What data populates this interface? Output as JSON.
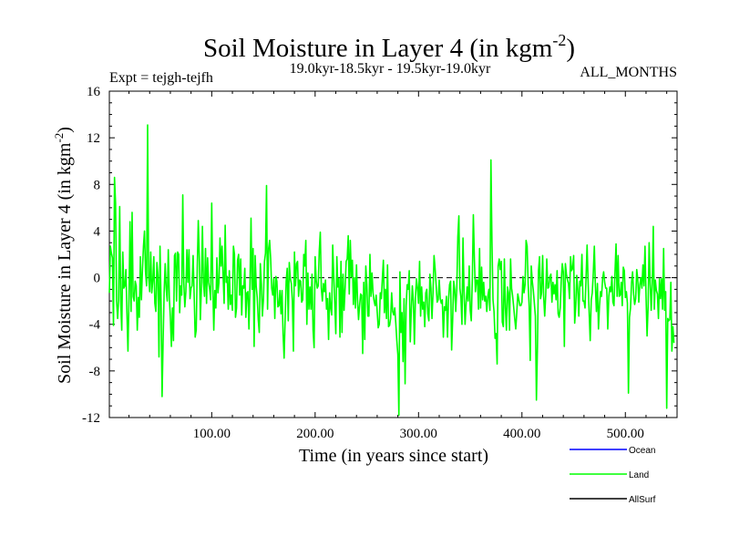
{
  "chart_data": {
    "type": "line",
    "title_main": "Soil Moisture in Layer 4 (in kgm",
    "title_sup": "-2",
    "title_close": ")",
    "expt_label": "Expt = tejgh-tejfh",
    "period_label": "19.0kyr-18.5kyr - 19.5kyr-19.0kyr",
    "months_label": "ALL_MONTHS",
    "xlabel": "Time (in years since start)",
    "ylabel_main": "Soil Moisture in Layer 4 (in kgm",
    "ylabel_sup": "-2",
    "ylabel_close": ")",
    "xlim": [
      1,
      550
    ],
    "ylim": [
      -12,
      16
    ],
    "x_ticks": [
      100,
      200,
      300,
      400,
      500
    ],
    "x_tick_labels": [
      "100.00",
      "200.00",
      "300.00",
      "400.00",
      "500.00"
    ],
    "y_ticks": [
      -12,
      -8,
      -4,
      0,
      4,
      8,
      12,
      16
    ],
    "y_tick_labels": [
      "-12",
      "-8",
      "-4",
      "0",
      "4",
      "8",
      "12",
      "16"
    ],
    "zero_line": true,
    "legend": [
      {
        "name": "Ocean",
        "color": "#0000ff"
      },
      {
        "name": "Land",
        "color": "#00ff00"
      },
      {
        "name": "AllSurf",
        "color": "#000000"
      }
    ],
    "series": [
      {
        "name": "Land",
        "color": "#00ff00",
        "x_start": 1,
        "x_step": 1,
        "values": [
          -1.3,
          2.7,
          2.1,
          1.7,
          -4.1,
          8.6,
          6.4,
          -2.0,
          -3.5,
          -1.9,
          6.1,
          -2.0,
          -4.5,
          2.2,
          -0.9,
          -0.7,
          0.7,
          -3.0,
          -6.3,
          -1.7,
          4.8,
          -2.9,
          5.6,
          -1.6,
          -2.0,
          -0.3,
          -0.7,
          -4.5,
          -1.7,
          -3.4,
          1.8,
          -1.9,
          0.7,
          2.7,
          4.0,
          0.5,
          -0.7,
          13.1,
          0.1,
          -1.2,
          2.2,
          -1.3,
          -0.3,
          1.8,
          -2.2,
          -2.9,
          1.3,
          0.2,
          -6.8,
          2.7,
          -2.1,
          -10.2,
          -5.4,
          -1.2,
          1.2,
          -1.0,
          -2.0,
          2.4,
          -1.7,
          -3.4,
          -5.9,
          -2.6,
          -5.4,
          1.9,
          2.1,
          -2.0,
          2.2,
          2.0,
          -3.0,
          -0.7,
          -1.5,
          7.1,
          -0.4,
          -2.5,
          -1.2,
          2.4,
          -0.4,
          2.4,
          -1.8,
          -0.9,
          -0.7,
          1.9,
          -1.4,
          -5.1,
          -4.5,
          0.8,
          4.9,
          1.6,
          -3.6,
          -0.9,
          4.4,
          -0.4,
          -1.6,
          2.5,
          -2.2,
          1.7,
          -0.4,
          -1.0,
          -1.9,
          6.4,
          -0.5,
          -4.5,
          -1.1,
          -2.6,
          1.7,
          -1.3,
          -0.4,
          3.4,
          1.0,
          2.7,
          0.2,
          -2.2,
          4.5,
          -0.4,
          0.1,
          -2.7,
          0.6,
          -2.3,
          -1.5,
          -2.8,
          2.7,
          2.0,
          -3.4,
          -2.6,
          1.5,
          2.0,
          -1.5,
          1.6,
          -3.2,
          -0.7,
          -0.9,
          0.8,
          -3.4,
          -1.3,
          -1.2,
          -4.4,
          -0.5,
          5.1,
          -1.0,
          2.5,
          -5.9,
          1.9,
          -0.7,
          -1.7,
          -3.6,
          -4.7,
          1.2,
          -0.5,
          -3.3,
          -1.9,
          1.4,
          2.1,
          7.9,
          -2.7,
          2.5,
          3.2,
          1.6,
          -0.9,
          -1.5,
          -0.1,
          -3.5,
          0.1,
          -0.3,
          -2.5,
          -2.4,
          -1.1,
          -3.1,
          -1.1,
          -4.8,
          -6.9,
          -3.5,
          -0.3,
          0.8,
          -3.7,
          1.3,
          -0.1,
          -0.5,
          -2.0,
          -6.3,
          2.2,
          -0.7,
          1.2,
          1.4,
          -1.6,
          -0.2,
          -0.3,
          -2.1,
          -1.9,
          2.0,
          1.0,
          3.2,
          -4.0,
          0.4,
          -2.7,
          -0.8,
          -2.7,
          0.3,
          -4.5,
          -6.0,
          1.8,
          -0.2,
          -0.9,
          -0.7,
          2.3,
          3.9,
          -0.9,
          -2.0,
          -0.5,
          -1.2,
          -0.2,
          -2.7,
          -1.8,
          -5.3,
          -1.3,
          -2.6,
          -3.2,
          2.8,
          0.2,
          -2.2,
          -4.8,
          1.8,
          -0.8,
          -0.1,
          -5.1,
          1.4,
          -4.7,
          0.3,
          -2.8,
          -0.9,
          1.4,
          1.6,
          3.6,
          -1.4,
          3.2,
          0.1,
          1.5,
          -2.3,
          0.0,
          -2.6,
          1.1,
          -1.9,
          -3.6,
          -2.4,
          -1.4,
          -1.5,
          -6.5,
          -0.4,
          -5.3,
          1.0,
          -0.6,
          -3.3,
          -3.3,
          2.0,
          -1.6,
          0.4,
          -1.3,
          -2.0,
          -2.4,
          -1.5,
          -2.9,
          -4.3,
          -4.0,
          -1.3,
          -1.8,
          -0.1,
          1.5,
          -3.0,
          -1.0,
          -3.5,
          1.1,
          -4.2,
          -4.1,
          -3.5,
          -1.3,
          -2.9,
          -3.2,
          -2.6,
          -3.9,
          -5.4,
          -6.6,
          -11.8,
          0.5,
          -4.7,
          -3.0,
          -7.2,
          -1.8,
          -9.1,
          -2.4,
          -0.6,
          -1.0,
          0.6,
          -5.5,
          -2.8,
          -0.7,
          -2.0,
          -5.7,
          -1.7,
          -0.1,
          -0.9,
          -2.2,
          1.4,
          -3.3,
          -0.8,
          -2.7,
          -2.1,
          -4.2,
          -1.3,
          -1.0,
          -3.1,
          -3.7,
          0.3,
          -0.9,
          -3.5,
          -1.3,
          1.9,
          0.8,
          -0.6,
          -2.1,
          -1.9,
          -0.2,
          -1.8,
          -2.2,
          -1.9,
          -5.1,
          -2.5,
          -2.8,
          -1.6,
          -5.1,
          -1.9,
          -0.6,
          -0.3,
          -6.2,
          -3.6,
          -0.3,
          -1.0,
          -2.9,
          -0.9,
          3.5,
          5.3,
          -0.9,
          -1.7,
          -4.0,
          3.4,
          -1.2,
          -4.0,
          -2.2,
          -0.8,
          -2.0,
          1.0,
          -2.8,
          -3.7,
          -0.2,
          5.4,
          1.6,
          -1.2,
          -0.2,
          -0.2,
          -2.7,
          2.5,
          -2.6,
          0.9,
          -1.9,
          -0.4,
          -2.0,
          -1.6,
          -2.9,
          -1.6,
          -1.0,
          -2.8,
          10.1,
          3.1,
          -1.9,
          -2.9,
          -5.2,
          -4.8,
          -7.4,
          1.0,
          1.6,
          0.7,
          1.4,
          -3.8,
          -4.2,
          1.6,
          -2.6,
          -4.5,
          -0.8,
          -1.3,
          -4.5,
          1.6,
          -0.9,
          -1.6,
          -2.5,
          -3.5,
          -4.4,
          -3.0,
          -1.4,
          -1.9,
          -2.4,
          -2.4,
          -2.1,
          0.1,
          -1.3,
          -0.6,
          3.2,
          2.7,
          -0.5,
          -2.5,
          -7.1,
          1.0,
          -0.3,
          -1.1,
          -2.2,
          -3.3,
          -10.5,
          -5.9,
          0.6,
          1.8,
          -1.8,
          -1.3,
          1.9,
          -1.6,
          -3.3,
          -1.5,
          1.6,
          -0.9,
          -0.8,
          0.1,
          0.3,
          -2.1,
          -0.4,
          -1.4,
          -0.6,
          -1.9,
          0.6,
          -3.1,
          -3.4,
          -2.6,
          -0.3,
          1.2,
          0.5,
          -5.9,
          1.2,
          0.3,
          -0.2,
          -0.5,
          -1.8,
          1.8,
          0.6,
          0.8,
          1.9,
          -3.9,
          -2.5,
          0.2,
          -1.0,
          -3.3,
          -0.3,
          -0.7,
          2.0,
          -2.0,
          -2.0,
          -2.6,
          0.0,
          2.8,
          -0.4,
          -3.0,
          -5.4,
          -1.9,
          -1.3,
          0.4,
          2.7,
          -0.7,
          -2.9,
          -0.5,
          -4.4,
          -2.4,
          -1.2,
          -1.6,
          -0.1,
          0.5,
          -0.4,
          -0.9,
          -0.9,
          -4.4,
          -1.6,
          -0.8,
          -1.2,
          0.1,
          -2.1,
          -2.4,
          0.5,
          2.9,
          -1.6,
          1.9,
          -1.6,
          -1.5,
          -0.4,
          -2.4,
          0.9,
          0.6,
          -1.7,
          -1.2,
          -2.2,
          -9.9,
          -3.4,
          -2.6,
          -0.4,
          0.5,
          -1.4,
          -2.3,
          -1.8,
          0.7,
          -0.1,
          -2.1,
          -0.6,
          0.0,
          -0.9,
          1.1,
          -0.7,
          2.7,
          -1.6,
          -5.0,
          -2.5,
          3.0,
          -0.5,
          -2.8,
          -0.5,
          4.4,
          -2.7,
          -0.2,
          -1.1,
          -1.4,
          -3.5,
          -0.1,
          -1.8,
          -0.1,
          -2.7,
          2.5,
          -2.8,
          -1.2,
          -11.2,
          -3.5,
          -3.7,
          -3.6,
          -0.4,
          -6.3,
          -4.2,
          -5.6
        ]
      }
    ]
  }
}
